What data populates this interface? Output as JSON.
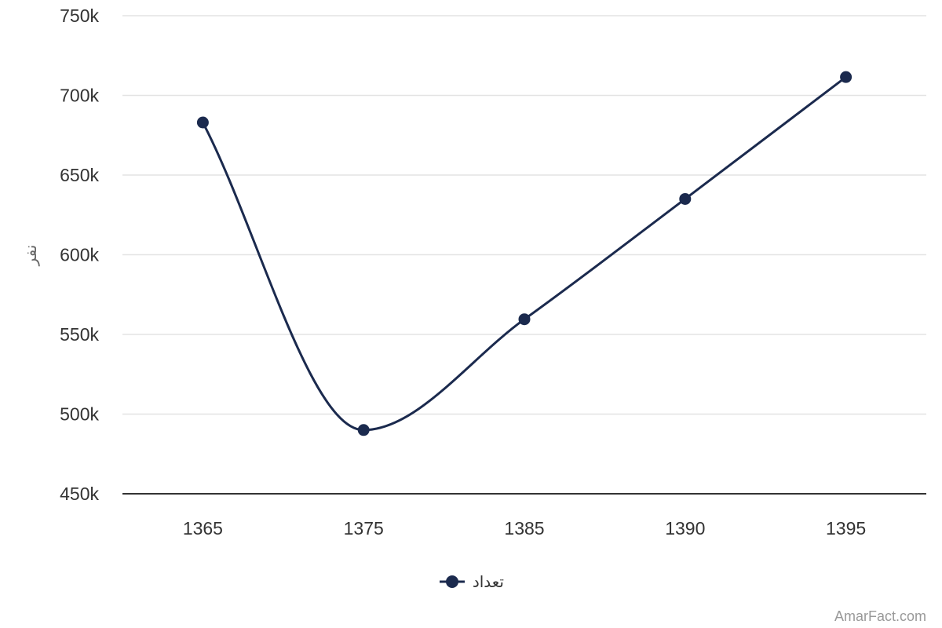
{
  "chart_data": {
    "type": "line",
    "x": [
      "1365",
      "1375",
      "1385",
      "1390",
      "1395"
    ],
    "series": [
      {
        "name": "تعداد",
        "values": [
          683000,
          490000,
          559500,
          635000,
          711500
        ]
      }
    ],
    "ylabel": "نفر",
    "ylim": [
      450000,
      750000
    ],
    "yticks": [
      450000,
      500000,
      550000,
      600000,
      650000,
      700000,
      750000
    ],
    "ytick_labels": [
      "450k",
      "500k",
      "550k",
      "600k",
      "650k",
      "700k",
      "750k"
    ],
    "grid": true,
    "smooth": true,
    "legend": "bottom-center",
    "color": "#1b2a4e"
  },
  "credit": "AmarFact.com"
}
